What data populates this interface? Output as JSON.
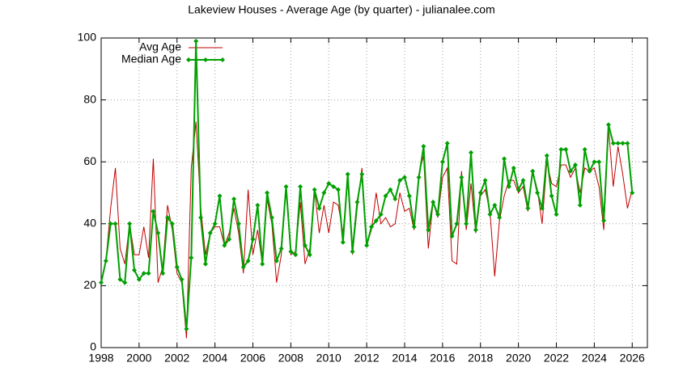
{
  "chart_data": {
    "type": "line",
    "title": "Lakeview Houses - Average Age (by quarter) - julianalee.com",
    "x": [
      1998,
      1998.25,
      1998.5,
      1998.75,
      1999,
      1999.25,
      1999.5,
      1999.75,
      2000,
      2000.25,
      2000.5,
      2000.75,
      2001,
      2001.25,
      2001.5,
      2001.75,
      2002,
      2002.25,
      2002.5,
      2002.75,
      2003,
      2003.25,
      2003.5,
      2003.75,
      2004,
      2004.25,
      2004.5,
      2004.75,
      2005,
      2005.25,
      2005.5,
      2005.75,
      2006,
      2006.25,
      2006.5,
      2006.75,
      2007,
      2007.25,
      2007.5,
      2007.75,
      2008,
      2008.25,
      2008.5,
      2008.75,
      2009,
      2009.25,
      2009.5,
      2009.75,
      2010,
      2010.25,
      2010.5,
      2010.75,
      2011,
      2011.25,
      2011.5,
      2011.75,
      2012,
      2012.25,
      2012.5,
      2012.75,
      2013,
      2013.25,
      2013.5,
      2013.75,
      2014,
      2014.25,
      2014.5,
      2014.75,
      2015,
      2015.25,
      2015.5,
      2015.75,
      2016,
      2016.25,
      2016.5,
      2016.75,
      2017,
      2017.25,
      2017.5,
      2017.75,
      2018,
      2018.25,
      2018.5,
      2018.75,
      2019,
      2019.25,
      2019.5,
      2019.75,
      2020,
      2020.25,
      2020.5,
      2020.75,
      2021,
      2021.25,
      2021.5,
      2021.75,
      2022,
      2022.25,
      2022.5,
      2022.75,
      2023,
      2023.25,
      2023.5,
      2023.75,
      2024,
      2024.25,
      2024.5,
      2024.75,
      2025,
      2025.25,
      2025.5,
      2025.75,
      2026
    ],
    "series": [
      {
        "name": "Avg Age",
        "color": "#c00000",
        "values": [
          21,
          28,
          45,
          58,
          32,
          27,
          40,
          30,
          30,
          39,
          29,
          61,
          21,
          26,
          46,
          38,
          24,
          21,
          3,
          58,
          73,
          45,
          30,
          37,
          39,
          39,
          33,
          37,
          45,
          37,
          24,
          51,
          30,
          38,
          27,
          48,
          40,
          21,
          30,
          52,
          30,
          31,
          47,
          27,
          32,
          51,
          37,
          46,
          37,
          47,
          46,
          37,
          54,
          30,
          45,
          58,
          33,
          38,
          50,
          40,
          42,
          39,
          40,
          50,
          44,
          45,
          38,
          56,
          62,
          32,
          47,
          42,
          55,
          58,
          28,
          27,
          57,
          38,
          53,
          37,
          49,
          51,
          44,
          23,
          41,
          49,
          54,
          54,
          50,
          52,
          44,
          57,
          51,
          40,
          60,
          53,
          52,
          59,
          59,
          55,
          58,
          50,
          58,
          57,
          58,
          52,
          38,
          71,
          52,
          65,
          56,
          45,
          51
        ]
      },
      {
        "name": "Median Age",
        "color": "#00a000",
        "values": [
          21,
          28,
          40,
          40,
          22,
          21,
          40,
          25,
          22,
          24,
          24,
          44,
          37,
          24,
          42,
          40,
          26,
          22,
          6,
          29,
          99,
          42,
          27,
          37,
          40,
          49,
          33,
          35,
          48,
          40,
          26,
          28,
          35,
          46,
          27,
          50,
          42,
          28,
          32,
          52,
          31,
          30,
          52,
          33,
          30,
          51,
          45,
          50,
          53,
          52,
          51,
          34,
          56,
          31,
          47,
          56,
          33,
          39,
          41,
          43,
          49,
          51,
          48,
          54,
          55,
          49,
          39,
          55,
          65,
          38,
          47,
          43,
          60,
          66,
          36,
          40,
          55,
          40,
          63,
          38,
          50,
          54,
          43,
          46,
          42,
          61,
          52,
          58,
          51,
          54,
          45,
          57,
          50,
          45,
          62,
          49,
          43,
          64,
          64,
          57,
          59,
          46,
          64,
          57,
          60,
          60,
          41,
          72,
          66,
          66,
          66,
          66,
          50
        ]
      }
    ],
    "xlim": [
      1998,
      2026.8
    ],
    "xticks": [
      1998,
      2000,
      2002,
      2004,
      2006,
      2008,
      2010,
      2012,
      2014,
      2016,
      2018,
      2020,
      2022,
      2024,
      2026
    ],
    "ylim": [
      0,
      100
    ],
    "yticks": [
      0,
      20,
      40,
      60,
      80,
      100
    ],
    "grid": true,
    "legend": "top-left"
  }
}
